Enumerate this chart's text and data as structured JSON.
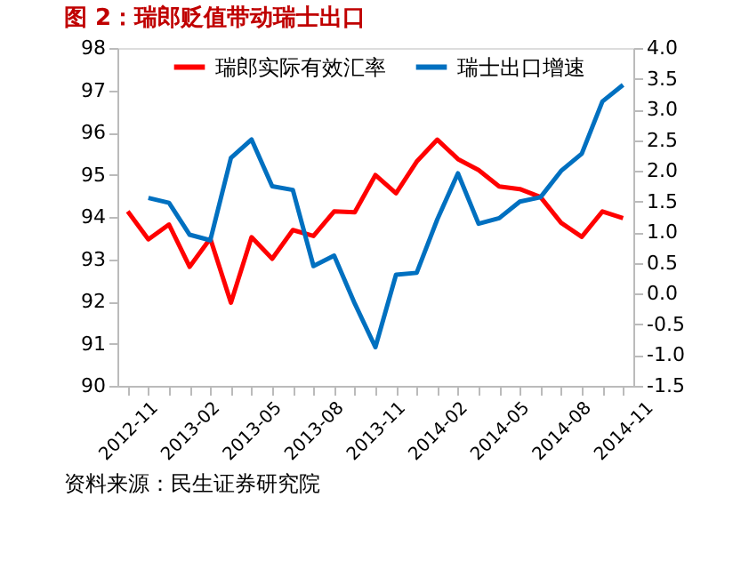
{
  "chart_data": {
    "type": "line",
    "title": "图 2：瑞郎贬值带动瑞士出口",
    "categories": [
      "2012-11",
      null,
      null,
      "2013-02",
      null,
      null,
      "2013-05",
      null,
      null,
      "2013-08",
      null,
      null,
      "2013-11",
      null,
      null,
      "2014-02",
      null,
      null,
      "2014-05",
      null,
      null,
      "2014-08",
      null,
      null,
      "2014-11"
    ],
    "series": [
      {
        "name": "瑞郎实际有效汇率",
        "color": "#ff0000",
        "values": [
          94.13,
          93.47,
          93.82,
          92.82,
          93.49,
          91.97,
          93.52,
          93.01,
          93.69,
          93.55,
          94.13,
          94.11,
          94.99,
          94.56,
          95.31,
          95.83,
          95.37,
          95.11,
          94.72,
          94.66,
          94.47,
          93.86,
          93.53,
          94.13,
          93.97
        ]
      },
      {
        "name": "瑞士出口增速",
        "color": "#0070c0",
        "axis": "y2",
        "values": [
          null,
          1.56,
          1.48,
          0.96,
          0.87,
          2.21,
          2.51,
          1.75,
          1.69,
          0.45,
          0.62,
          -0.16,
          -0.87,
          0.31,
          0.34,
          1.21,
          1.96,
          1.14,
          1.23,
          1.5,
          1.57,
          2.0,
          2.28,
          3.13,
          3.4
        ]
      }
    ],
    "ylim": [
      90,
      98
    ],
    "yticks": [
      90,
      91,
      92,
      93,
      94,
      95,
      96,
      97,
      98
    ],
    "y2lim": [
      -1.5,
      4.0
    ],
    "y2ticks": [
      {
        "value": -1.5,
        "label": "-1.5"
      },
      {
        "value": -1,
        "label": "-1.0"
      },
      {
        "value": -0.5,
        "label": "-0.5"
      },
      {
        "value": 0,
        "label": "0.0"
      },
      {
        "value": 0.5,
        "label": "0.5"
      },
      {
        "value": 1,
        "label": "1.0"
      },
      {
        "value": 1.5,
        "label": "1.5"
      },
      {
        "value": 2,
        "label": "2.0"
      },
      {
        "value": 2.5,
        "label": "2.5"
      },
      {
        "value": 3,
        "label": "3.0"
      },
      {
        "value": 3.5,
        "label": "3.5"
      },
      {
        "value": 4,
        "label": "4.0"
      }
    ],
    "legend": "top",
    "grid": false,
    "marker": "none",
    "line_style": "solid",
    "annotations": [
      "资料来源：民生证券研究院"
    ]
  }
}
